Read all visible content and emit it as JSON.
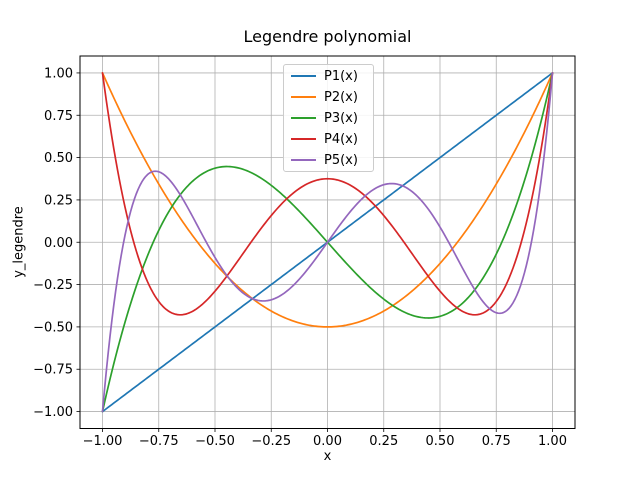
{
  "figure": {
    "background": "#ffffff"
  },
  "chart_data": {
    "type": "line",
    "title": "Legendre polynomial",
    "xlabel": "x",
    "ylabel": "y_legendre",
    "xlim": [
      -1.1,
      1.1
    ],
    "ylim": [
      -1.1,
      1.1
    ],
    "x_range": [
      -1,
      1
    ],
    "grid": true,
    "grid_color": "#b0b0b0",
    "frame_color": "#000000",
    "xticks": [
      -1.0,
      -0.75,
      -0.5,
      -0.25,
      0.0,
      0.25,
      0.5,
      0.75,
      1.0
    ],
    "yticks": [
      -1.0,
      -0.75,
      -0.5,
      -0.25,
      0.0,
      0.25,
      0.5,
      0.75,
      1.0
    ],
    "xtick_labels": [
      "−1.00",
      "−0.75",
      "−0.50",
      "−0.25",
      "0.00",
      "0.25",
      "0.50",
      "0.75",
      "1.00"
    ],
    "ytick_labels": [
      "−1.00",
      "−0.75",
      "−0.50",
      "−0.25",
      "0.00",
      "0.25",
      "0.50",
      "0.75",
      "1.00"
    ],
    "legend": {
      "position": "upper center"
    },
    "series": [
      {
        "name": "P1(x)",
        "color": "#1f77b4",
        "coefficients": [
          0,
          1
        ],
        "x": [
          -1.0,
          -0.9,
          -0.8,
          -0.7,
          -0.6,
          -0.5,
          -0.4,
          -0.3,
          -0.2,
          -0.1,
          0.0,
          0.1,
          0.2,
          0.3,
          0.4,
          0.5,
          0.6,
          0.7,
          0.8,
          0.9,
          1.0
        ],
        "y": [
          -1.0,
          -0.9,
          -0.8,
          -0.7,
          -0.6,
          -0.5,
          -0.4,
          -0.3,
          -0.2,
          -0.1,
          0.0,
          0.1,
          0.2,
          0.3,
          0.4,
          0.5,
          0.6,
          0.7,
          0.8,
          0.9,
          1.0
        ]
      },
      {
        "name": "P2(x)",
        "color": "#ff7f0e",
        "coefficients": [
          -0.5,
          0,
          1.5
        ],
        "x": [
          -1.0,
          -0.9,
          -0.8,
          -0.7,
          -0.6,
          -0.5,
          -0.4,
          -0.3,
          -0.2,
          -0.1,
          0.0,
          0.1,
          0.2,
          0.3,
          0.4,
          0.5,
          0.6,
          0.7,
          0.8,
          0.9,
          1.0
        ],
        "y": [
          1.0,
          0.715,
          0.46,
          0.235,
          0.04,
          -0.125,
          -0.26,
          -0.365,
          -0.44,
          -0.485,
          -0.5,
          -0.485,
          -0.44,
          -0.365,
          -0.26,
          -0.125,
          0.04,
          0.235,
          0.46,
          0.715,
          1.0
        ]
      },
      {
        "name": "P3(x)",
        "color": "#2ca02c",
        "coefficients": [
          0,
          -1.5,
          0,
          2.5
        ],
        "x": [
          -1.0,
          -0.9,
          -0.8,
          -0.7,
          -0.6,
          -0.5,
          -0.4,
          -0.3,
          -0.2,
          -0.1,
          0.0,
          0.1,
          0.2,
          0.3,
          0.4,
          0.5,
          0.6,
          0.7,
          0.8,
          0.9,
          1.0
        ],
        "y": [
          -1.0,
          -0.4725,
          -0.08,
          0.1925,
          0.36,
          0.4375,
          0.44,
          0.3825,
          0.28,
          0.1475,
          0.0,
          -0.1475,
          -0.28,
          -0.3825,
          -0.44,
          -0.4375,
          -0.36,
          -0.1925,
          0.08,
          0.4725,
          1.0
        ]
      },
      {
        "name": "P4(x)",
        "color": "#d62728",
        "coefficients": [
          0.375,
          0,
          -3.75,
          0,
          4.375
        ],
        "x": [
          -1.0,
          -0.9,
          -0.8,
          -0.7,
          -0.6,
          -0.5,
          -0.4,
          -0.3,
          -0.2,
          -0.1,
          0.0,
          0.1,
          0.2,
          0.3,
          0.4,
          0.5,
          0.6,
          0.7,
          0.8,
          0.9,
          1.0
        ],
        "y": [
          1.0,
          0.2079,
          -0.233,
          -0.4121,
          -0.408,
          -0.2891,
          -0.113,
          0.0729,
          0.232,
          0.3379,
          0.375,
          0.3379,
          0.232,
          0.0729,
          -0.113,
          -0.2891,
          -0.408,
          -0.4121,
          -0.233,
          0.2079,
          1.0
        ]
      },
      {
        "name": "P5(x)",
        "color": "#9467bd",
        "coefficients": [
          0,
          1.875,
          0,
          -8.75,
          0,
          7.875
        ],
        "x": [
          -1.0,
          -0.9,
          -0.8,
          -0.7,
          -0.6,
          -0.5,
          -0.4,
          -0.3,
          -0.2,
          -0.1,
          0.0,
          0.1,
          0.2,
          0.3,
          0.4,
          0.5,
          0.6,
          0.7,
          0.8,
          0.9,
          1.0
        ],
        "y": [
          -1.0,
          0.0411,
          0.3995,
          0.3652,
          0.1526,
          -0.0898,
          -0.2706,
          -0.3454,
          -0.3075,
          -0.1788,
          0.0,
          0.1788,
          0.3075,
          0.3454,
          0.2706,
          0.0898,
          -0.1526,
          -0.3652,
          -0.3995,
          -0.0411,
          1.0
        ]
      }
    ]
  }
}
